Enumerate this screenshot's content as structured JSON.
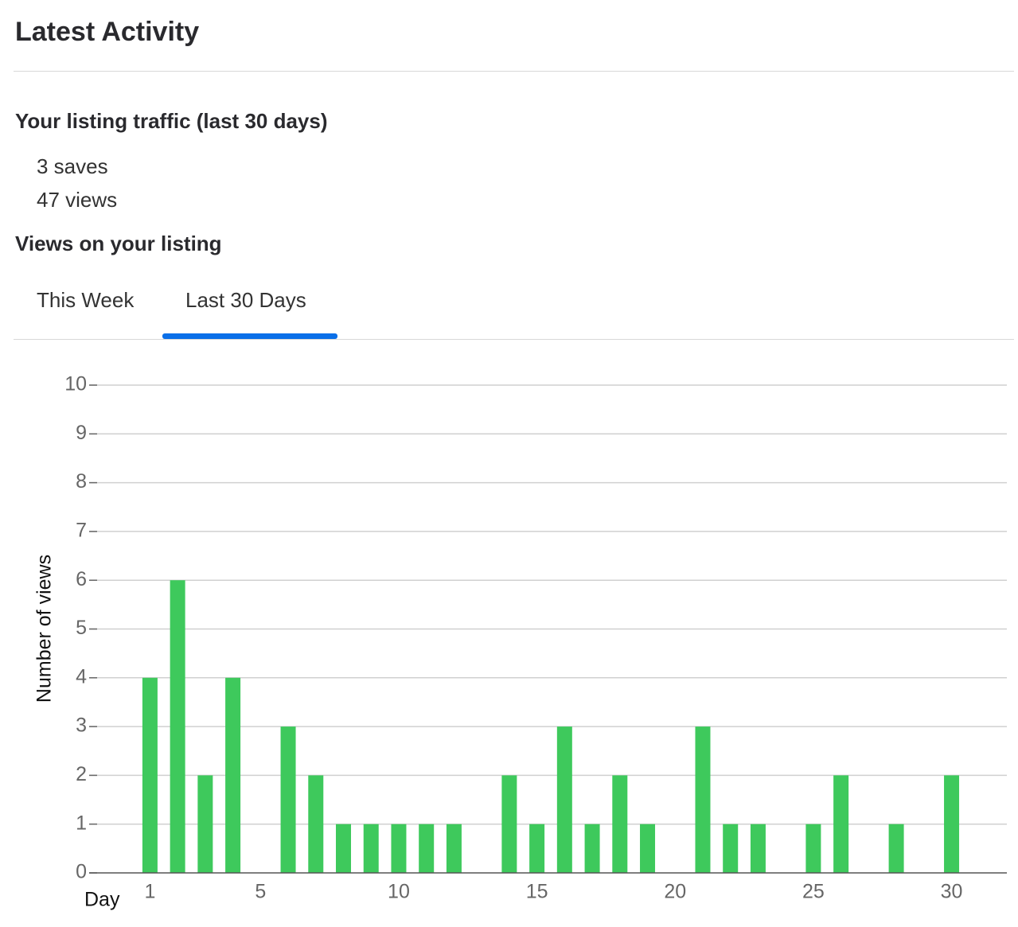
{
  "header": {
    "title": "Latest Activity"
  },
  "traffic": {
    "title": "Your listing traffic (last 30 days)",
    "saves": "3 saves",
    "views": "47 views"
  },
  "views_section": {
    "title": "Views on your listing",
    "tabs": [
      "This Week",
      "Last 30 Days"
    ],
    "active_tab": 1
  },
  "chart_data": {
    "type": "bar",
    "x": [
      1,
      2,
      3,
      4,
      5,
      6,
      7,
      8,
      9,
      10,
      11,
      12,
      13,
      14,
      15,
      16,
      17,
      18,
      19,
      20,
      21,
      22,
      23,
      24,
      25,
      26,
      27,
      28,
      29,
      30
    ],
    "values": [
      4,
      6,
      2,
      4,
      0,
      3,
      2,
      1,
      1,
      1,
      1,
      1,
      0,
      2,
      1,
      3,
      1,
      2,
      1,
      0,
      3,
      1,
      1,
      0,
      1,
      2,
      0,
      1,
      0,
      2
    ],
    "color": "#3ec95c",
    "xlim": [
      -1.2,
      32
    ],
    "xticks": [
      1,
      5,
      10,
      15,
      20,
      25,
      30
    ],
    "ylim": [
      0,
      10
    ],
    "yticks": [
      0,
      1,
      2,
      3,
      4,
      5,
      6,
      7,
      8,
      9,
      10
    ],
    "x_label": "Day",
    "y_label": "Number of views",
    "grid": true
  }
}
